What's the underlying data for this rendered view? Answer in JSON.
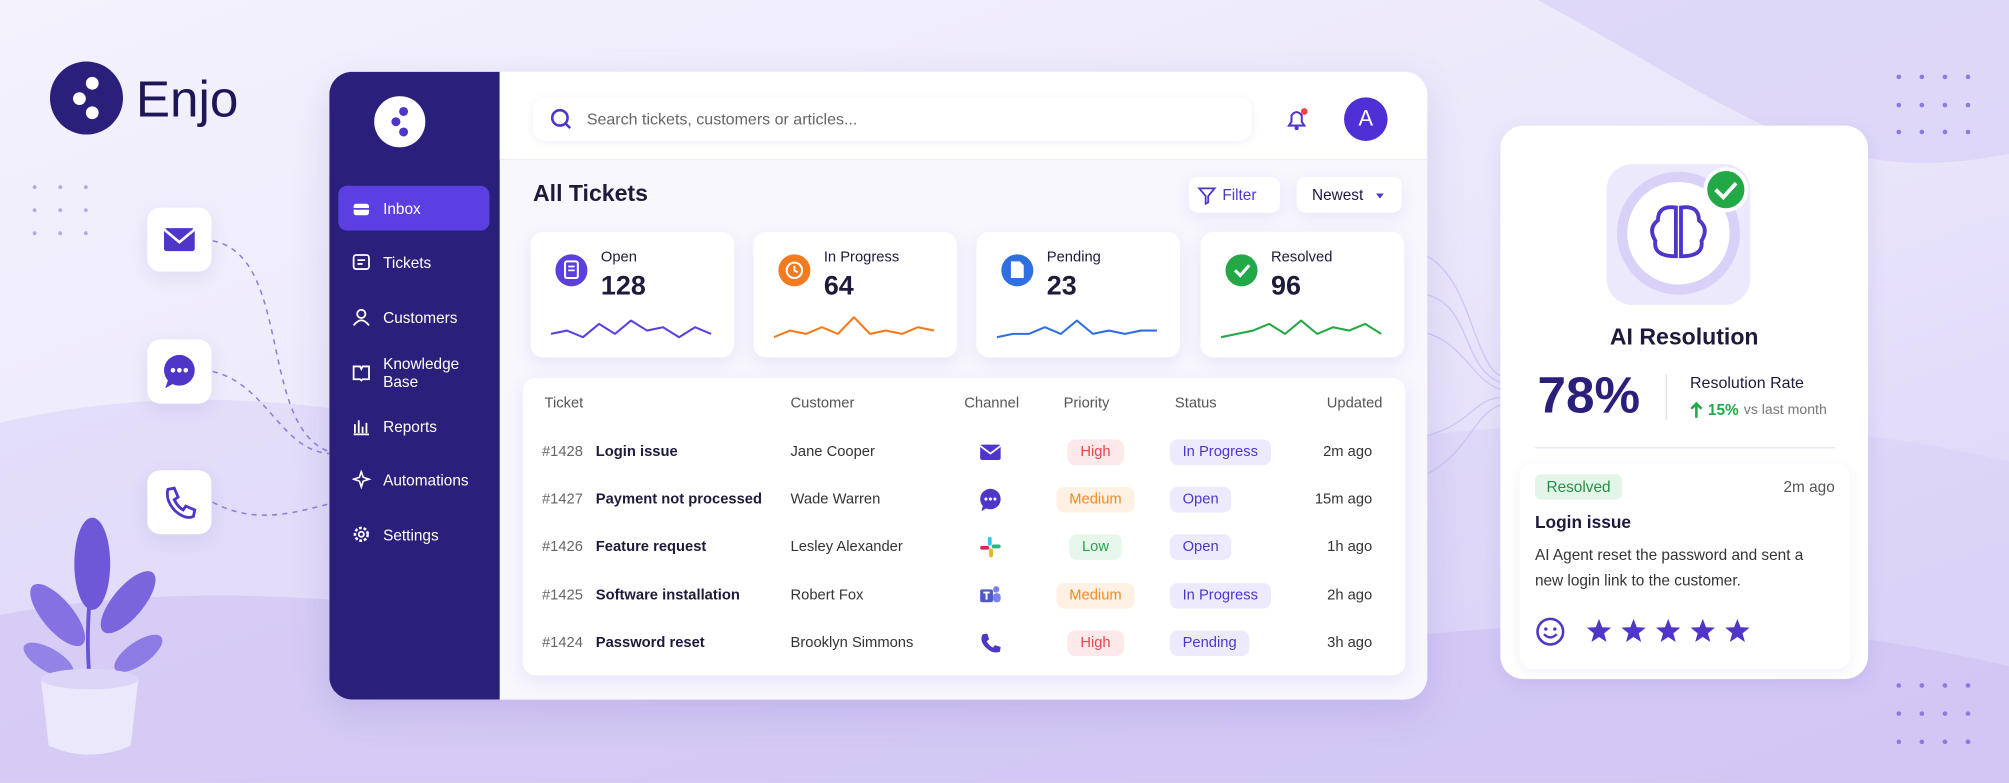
{
  "brand": {
    "name": "Enjo"
  },
  "sidebar": {
    "items": [
      "Inbox",
      "Tickets",
      "Customers",
      "Knowledge Base",
      "Reports",
      "Automations",
      "Settings"
    ]
  },
  "topbar": {
    "search_placeholder": "Search tickets, customers or articles...",
    "avatar": "A"
  },
  "page": {
    "title": "All Tickets",
    "filter": "Filter",
    "sort": "Newest"
  },
  "stats": [
    {
      "label": "Open",
      "value": "128",
      "color": "#5b3fe0"
    },
    {
      "label": "In Progress",
      "value": "64",
      "color": "#f47a1f"
    },
    {
      "label": "Pending",
      "value": "23",
      "color": "#2f6fe0"
    },
    {
      "label": "Resolved",
      "value": "96",
      "color": "#22a847"
    }
  ],
  "table": {
    "headers": [
      "Ticket",
      "Customer",
      "Channel",
      "Priority",
      "Status",
      "Updated"
    ],
    "rows": [
      [
        "#1428",
        "Login issue",
        "Jane Cooper",
        "High",
        "In Progress",
        "2m ago"
      ],
      [
        "#1427",
        "Payment not processed",
        "Wade Warren",
        "Medium",
        "Open",
        "15m ago"
      ],
      [
        "#1426",
        "Feature request",
        "Lesley Alexander",
        "Low",
        "Open",
        "1h ago"
      ],
      [
        "#1425",
        "Software installation",
        "Robert Fox",
        "Medium",
        "In Progress",
        "2h ago"
      ],
      [
        "#1424",
        "Password reset",
        "Brooklyn Simmons",
        "High",
        "Pending",
        "3h ago"
      ]
    ]
  },
  "ai_card": {
    "title": "AI Resolution",
    "rate": "78%",
    "rate_label": "Resolution Rate",
    "change": "15%",
    "change_label": "vs last month",
    "recent": {
      "status": "Resolved",
      "time": "2m ago",
      "title": "Login issue",
      "description": "AI Agent reset the password and sent a new login link to the customer."
    }
  }
}
